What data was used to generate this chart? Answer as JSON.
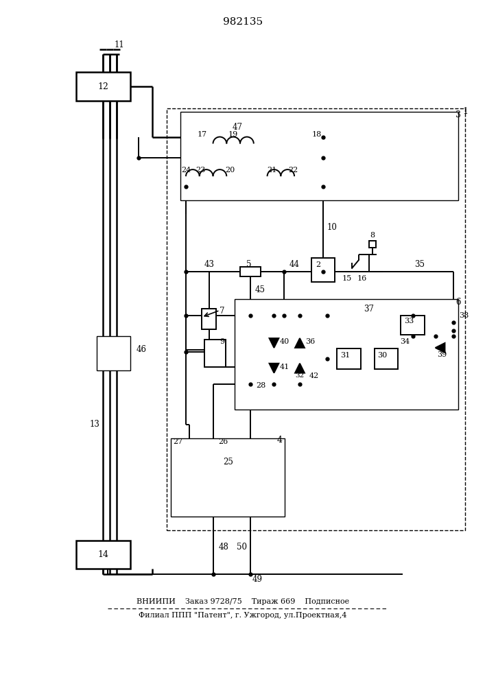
{
  "title": "982135",
  "footer_line1": "ВНИИПИ    Заказ 9728/75    Тираж 669    Подписное",
  "footer_line2": "Филиал ППП \"Патент\", г. Ужгород, ул.Проектная,4",
  "bg_color": "#ffffff"
}
